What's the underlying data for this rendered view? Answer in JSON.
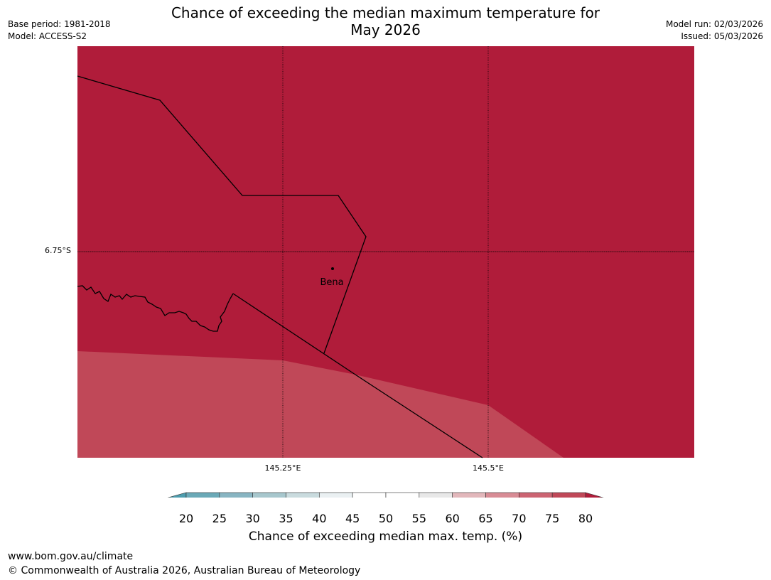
{
  "header": {
    "title_line1": "Chance of exceeding the median maximum temperature for",
    "title_line2": "May 2026",
    "base_period": "Base period: 1981-2018",
    "model": "Model: ACCESS-S2",
    "model_run": "Model run: 02/03/2026",
    "issued": "Issued: 05/03/2026"
  },
  "map": {
    "lat_label": "6.75°S",
    "lon_labels": [
      "145.25°E",
      "145.5°E"
    ],
    "place_name": "Bena"
  },
  "colorbar": {
    "ticks": [
      "20",
      "25",
      "30",
      "35",
      "40",
      "45",
      "50",
      "55",
      "60",
      "65",
      "70",
      "75",
      "80"
    ],
    "colors": [
      "#6aa9b7",
      "#88b5c2",
      "#a7c7cd",
      "#c9dbde",
      "#eaf0f2",
      "#ffffff",
      "#ffffff",
      "#e8e8e8",
      "#e2b7bb",
      "#d88c95",
      "#cc6472",
      "#c04858"
    ],
    "under_color": "#4d9dae",
    "over_color": "#b01c3a",
    "title": "Chance of exceeding median max. temp. (%)"
  },
  "colors": {
    "high_prob": "#b01c3a",
    "mid_prob": "#c04858"
  },
  "footer": {
    "url": "www.bom.gov.au/climate",
    "copyright": "© Commonwealth of Australia 2026, Australian Bureau of Meteorology"
  }
}
